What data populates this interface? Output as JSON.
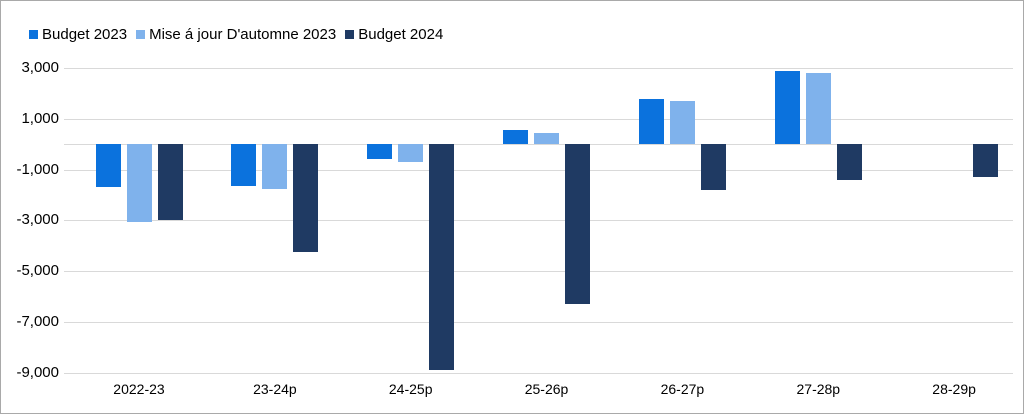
{
  "chart_data": {
    "type": "bar",
    "title": "",
    "xlabel": "",
    "ylabel": "",
    "categories": [
      "2022-23",
      "23-24p",
      "24-25p",
      "25-26p",
      "26-27p",
      "27-28p",
      "28-29p"
    ],
    "series": [
      {
        "name": "Budget 2023",
        "color": "#0b72dd",
        "values": [
          -1700,
          -1650,
          -600,
          550,
          1800,
          2900,
          null
        ]
      },
      {
        "name": "Mise á jour D'automne 2023",
        "color": "#7fb2ec",
        "values": [
          -3050,
          -1750,
          -700,
          450,
          1700,
          2800,
          null
        ]
      },
      {
        "name": "Budget 2024",
        "color": "#1f3a63",
        "values": [
          -3000,
          -4250,
          -8900,
          -6300,
          -1800,
          -1400,
          -1300
        ]
      }
    ],
    "y_ticks": [
      "3,000",
      "1,000",
      "-1,000",
      "-3,000",
      "-5,000",
      "-7,000",
      "-9,000"
    ],
    "y_tick_values": [
      3000,
      1000,
      -1000,
      -3000,
      -5000,
      -7000,
      -9000
    ],
    "gridline_values": [
      3000,
      1000,
      0,
      -1000,
      -3000,
      -5000,
      -7000,
      -9000
    ],
    "ylim": [
      -9000,
      3000
    ],
    "grid": true,
    "legend_position": "top-left"
  },
  "colors": {
    "grid": "#d9d9d9",
    "frame_border": "#a9a9a9",
    "text": "#000000",
    "background": "#ffffff"
  }
}
